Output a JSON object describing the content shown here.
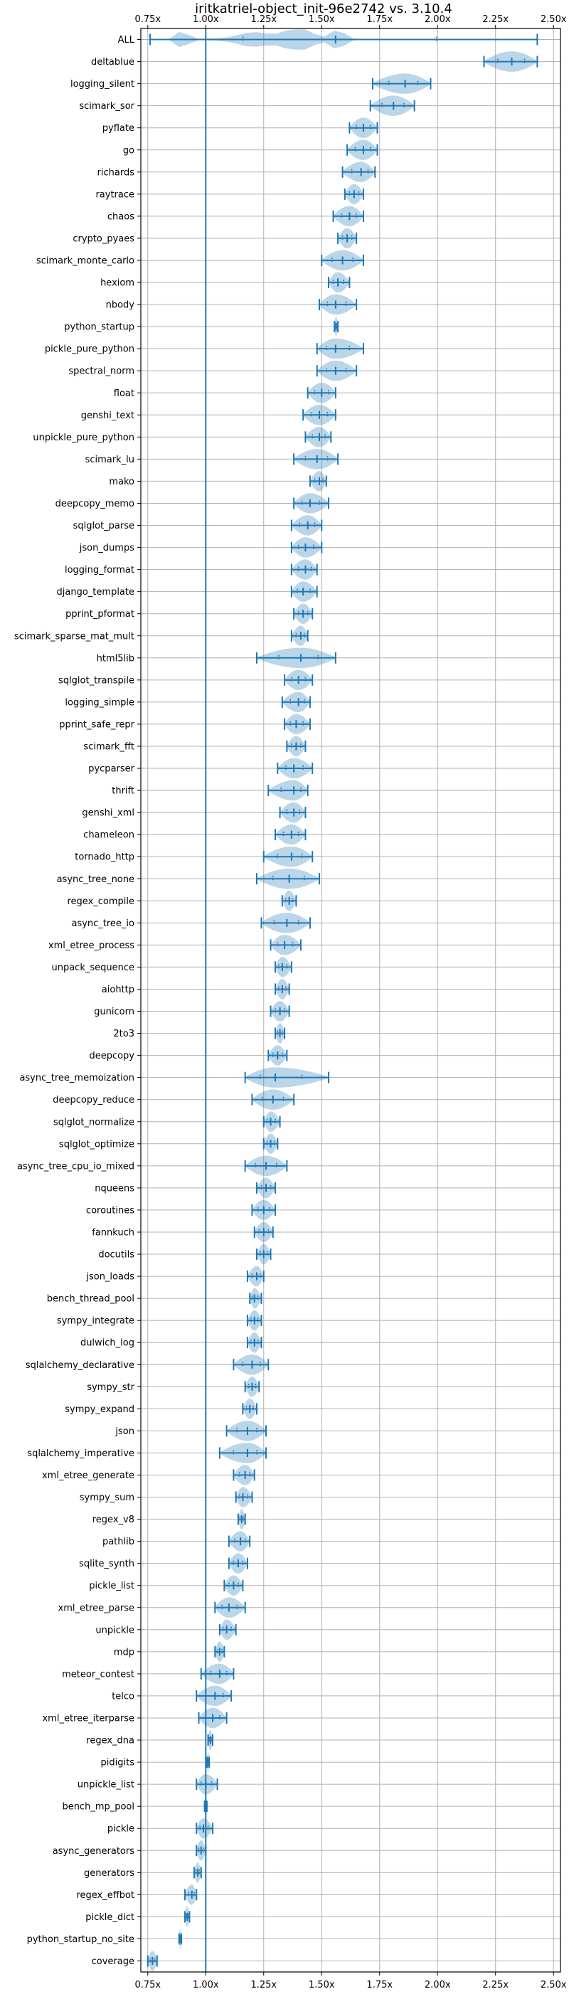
{
  "chart_data": {
    "type": "violin",
    "title": "iritkatriel-object_init-96e2742 vs. 3.10.4",
    "xlim": [
      0.72,
      2.53
    ],
    "xticks": [
      0.75,
      1.0,
      1.25,
      1.5,
      1.75,
      2.0,
      2.25,
      2.5
    ],
    "xtick_labels": [
      "0.75x",
      "1.00x",
      "1.25x",
      "1.50x",
      "1.75x",
      "2.00x",
      "2.25x",
      "2.50x"
    ],
    "reference_line": 1.0,
    "grid": true,
    "colors": {
      "violin": "#1f77b4",
      "reference": "#1f77b4",
      "grid": "#b0b0b0"
    },
    "benchmarks": [
      {
        "name": "ALL",
        "min": 0.76,
        "max": 2.43,
        "median": 1.56,
        "spread": "wide"
      },
      {
        "name": "deltablue",
        "min": 2.2,
        "max": 2.43,
        "median": 2.32
      },
      {
        "name": "logging_silent",
        "min": 1.72,
        "max": 1.97,
        "median": 1.86
      },
      {
        "name": "scimark_sor",
        "min": 1.71,
        "max": 1.9,
        "median": 1.81
      },
      {
        "name": "pyflate",
        "min": 1.62,
        "max": 1.74,
        "median": 1.68
      },
      {
        "name": "go",
        "min": 1.61,
        "max": 1.74,
        "median": 1.68
      },
      {
        "name": "richards",
        "min": 1.59,
        "max": 1.73,
        "median": 1.67
      },
      {
        "name": "raytrace",
        "min": 1.6,
        "max": 1.68,
        "median": 1.64
      },
      {
        "name": "chaos",
        "min": 1.55,
        "max": 1.68,
        "median": 1.62
      },
      {
        "name": "crypto_pyaes",
        "min": 1.57,
        "max": 1.65,
        "median": 1.61
      },
      {
        "name": "scimark_monte_carlo",
        "min": 1.5,
        "max": 1.68,
        "median": 1.59
      },
      {
        "name": "hexiom",
        "min": 1.53,
        "max": 1.62,
        "median": 1.57
      },
      {
        "name": "nbody",
        "min": 1.49,
        "max": 1.65,
        "median": 1.56
      },
      {
        "name": "python_startup",
        "min": 1.555,
        "max": 1.57,
        "median": 1.562
      },
      {
        "name": "pickle_pure_python",
        "min": 1.48,
        "max": 1.68,
        "median": 1.56
      },
      {
        "name": "spectral_norm",
        "min": 1.48,
        "max": 1.65,
        "median": 1.56
      },
      {
        "name": "float",
        "min": 1.44,
        "max": 1.56,
        "median": 1.5
      },
      {
        "name": "genshi_text",
        "min": 1.42,
        "max": 1.56,
        "median": 1.49
      },
      {
        "name": "unpickle_pure_python",
        "min": 1.43,
        "max": 1.54,
        "median": 1.49
      },
      {
        "name": "scimark_lu",
        "min": 1.38,
        "max": 1.57,
        "median": 1.48
      },
      {
        "name": "mako",
        "min": 1.45,
        "max": 1.52,
        "median": 1.49
      },
      {
        "name": "deepcopy_memo",
        "min": 1.38,
        "max": 1.53,
        "median": 1.45
      },
      {
        "name": "sqlglot_parse",
        "min": 1.37,
        "max": 1.5,
        "median": 1.44
      },
      {
        "name": "json_dumps",
        "min": 1.37,
        "max": 1.5,
        "median": 1.43
      },
      {
        "name": "logging_format",
        "min": 1.37,
        "max": 1.48,
        "median": 1.43
      },
      {
        "name": "django_template",
        "min": 1.37,
        "max": 1.48,
        "median": 1.42
      },
      {
        "name": "pprint_pformat",
        "min": 1.38,
        "max": 1.46,
        "median": 1.42
      },
      {
        "name": "scimark_sparse_mat_mult",
        "min": 1.37,
        "max": 1.44,
        "median": 1.41
      },
      {
        "name": "html5lib",
        "min": 1.22,
        "max": 1.56,
        "median": 1.41
      },
      {
        "name": "sqlglot_transpile",
        "min": 1.34,
        "max": 1.46,
        "median": 1.4
      },
      {
        "name": "logging_simple",
        "min": 1.33,
        "max": 1.45,
        "median": 1.4
      },
      {
        "name": "pprint_safe_repr",
        "min": 1.34,
        "max": 1.45,
        "median": 1.39
      },
      {
        "name": "scimark_fft",
        "min": 1.35,
        "max": 1.43,
        "median": 1.39
      },
      {
        "name": "pycparser",
        "min": 1.31,
        "max": 1.46,
        "median": 1.38
      },
      {
        "name": "thrift",
        "min": 1.27,
        "max": 1.44,
        "median": 1.38
      },
      {
        "name": "genshi_xml",
        "min": 1.32,
        "max": 1.43,
        "median": 1.38
      },
      {
        "name": "chameleon",
        "min": 1.3,
        "max": 1.43,
        "median": 1.37
      },
      {
        "name": "tornado_http",
        "min": 1.25,
        "max": 1.46,
        "median": 1.37
      },
      {
        "name": "async_tree_none",
        "min": 1.22,
        "max": 1.49,
        "median": 1.36
      },
      {
        "name": "regex_compile",
        "min": 1.33,
        "max": 1.39,
        "median": 1.36
      },
      {
        "name": "async_tree_io",
        "min": 1.24,
        "max": 1.45,
        "median": 1.35
      },
      {
        "name": "xml_etree_process",
        "min": 1.28,
        "max": 1.41,
        "median": 1.34
      },
      {
        "name": "unpack_sequence",
        "min": 1.3,
        "max": 1.37,
        "median": 1.33
      },
      {
        "name": "aiohttp",
        "min": 1.3,
        "max": 1.36,
        "median": 1.33
      },
      {
        "name": "gunicorn",
        "min": 1.28,
        "max": 1.36,
        "median": 1.32
      },
      {
        "name": "2to3",
        "min": 1.3,
        "max": 1.34,
        "median": 1.32
      },
      {
        "name": "deepcopy",
        "min": 1.27,
        "max": 1.35,
        "median": 1.31
      },
      {
        "name": "async_tree_memoization",
        "min": 1.17,
        "max": 1.53,
        "median": 1.3
      },
      {
        "name": "deepcopy_reduce",
        "min": 1.2,
        "max": 1.38,
        "median": 1.29
      },
      {
        "name": "sqlglot_normalize",
        "min": 1.25,
        "max": 1.32,
        "median": 1.28
      },
      {
        "name": "sqlglot_optimize",
        "min": 1.25,
        "max": 1.31,
        "median": 1.28
      },
      {
        "name": "async_tree_cpu_io_mixed",
        "min": 1.17,
        "max": 1.35,
        "median": 1.26
      },
      {
        "name": "nqueens",
        "min": 1.22,
        "max": 1.3,
        "median": 1.26
      },
      {
        "name": "coroutines",
        "min": 1.2,
        "max": 1.3,
        "median": 1.25
      },
      {
        "name": "fannkuch",
        "min": 1.21,
        "max": 1.29,
        "median": 1.25
      },
      {
        "name": "docutils",
        "min": 1.22,
        "max": 1.28,
        "median": 1.25
      },
      {
        "name": "json_loads",
        "min": 1.18,
        "max": 1.25,
        "median": 1.22
      },
      {
        "name": "bench_thread_pool",
        "min": 1.19,
        "max": 1.24,
        "median": 1.21
      },
      {
        "name": "sympy_integrate",
        "min": 1.18,
        "max": 1.24,
        "median": 1.21
      },
      {
        "name": "dulwich_log",
        "min": 1.18,
        "max": 1.24,
        "median": 1.21
      },
      {
        "name": "sqlalchemy_declarative",
        "min": 1.12,
        "max": 1.27,
        "median": 1.2
      },
      {
        "name": "sympy_str",
        "min": 1.17,
        "max": 1.23,
        "median": 1.2
      },
      {
        "name": "sympy_expand",
        "min": 1.16,
        "max": 1.22,
        "median": 1.19
      },
      {
        "name": "json",
        "min": 1.09,
        "max": 1.26,
        "median": 1.18
      },
      {
        "name": "sqlalchemy_imperative",
        "min": 1.06,
        "max": 1.26,
        "median": 1.18
      },
      {
        "name": "xml_etree_generate",
        "min": 1.12,
        "max": 1.21,
        "median": 1.17
      },
      {
        "name": "sympy_sum",
        "min": 1.13,
        "max": 1.2,
        "median": 1.16
      },
      {
        "name": "regex_v8",
        "min": 1.14,
        "max": 1.17,
        "median": 1.155
      },
      {
        "name": "pathlib",
        "min": 1.1,
        "max": 1.19,
        "median": 1.15
      },
      {
        "name": "sqlite_synth",
        "min": 1.1,
        "max": 1.18,
        "median": 1.14
      },
      {
        "name": "pickle_list",
        "min": 1.08,
        "max": 1.16,
        "median": 1.12
      },
      {
        "name": "xml_etree_parse",
        "min": 1.04,
        "max": 1.17,
        "median": 1.1
      },
      {
        "name": "unpickle",
        "min": 1.06,
        "max": 1.13,
        "median": 1.09
      },
      {
        "name": "mdp",
        "min": 1.04,
        "max": 1.08,
        "median": 1.06
      },
      {
        "name": "meteor_contest",
        "min": 0.98,
        "max": 1.12,
        "median": 1.06
      },
      {
        "name": "telco",
        "min": 0.96,
        "max": 1.11,
        "median": 1.04
      },
      {
        "name": "xml_etree_iterparse",
        "min": 0.97,
        "max": 1.09,
        "median": 1.03
      },
      {
        "name": "regex_dna",
        "min": 1.01,
        "max": 1.03,
        "median": 1.02
      },
      {
        "name": "pidigits",
        "min": 1.005,
        "max": 1.015,
        "median": 1.01
      },
      {
        "name": "unpickle_list",
        "min": 0.96,
        "max": 1.05,
        "median": 1.0
      },
      {
        "name": "bench_mp_pool",
        "min": 0.995,
        "max": 1.005,
        "median": 1.0
      },
      {
        "name": "pickle",
        "min": 0.96,
        "max": 1.03,
        "median": 0.99
      },
      {
        "name": "async_generators",
        "min": 0.96,
        "max": 1.0,
        "median": 0.98
      },
      {
        "name": "generators",
        "min": 0.95,
        "max": 0.98,
        "median": 0.965
      },
      {
        "name": "regex_effbot",
        "min": 0.91,
        "max": 0.96,
        "median": 0.94
      },
      {
        "name": "pickle_dict",
        "min": 0.91,
        "max": 0.93,
        "median": 0.92
      },
      {
        "name": "python_startup_no_site",
        "min": 0.885,
        "max": 0.895,
        "median": 0.89
      },
      {
        "name": "coverage",
        "min": 0.75,
        "max": 0.79,
        "median": 0.77
      }
    ]
  }
}
